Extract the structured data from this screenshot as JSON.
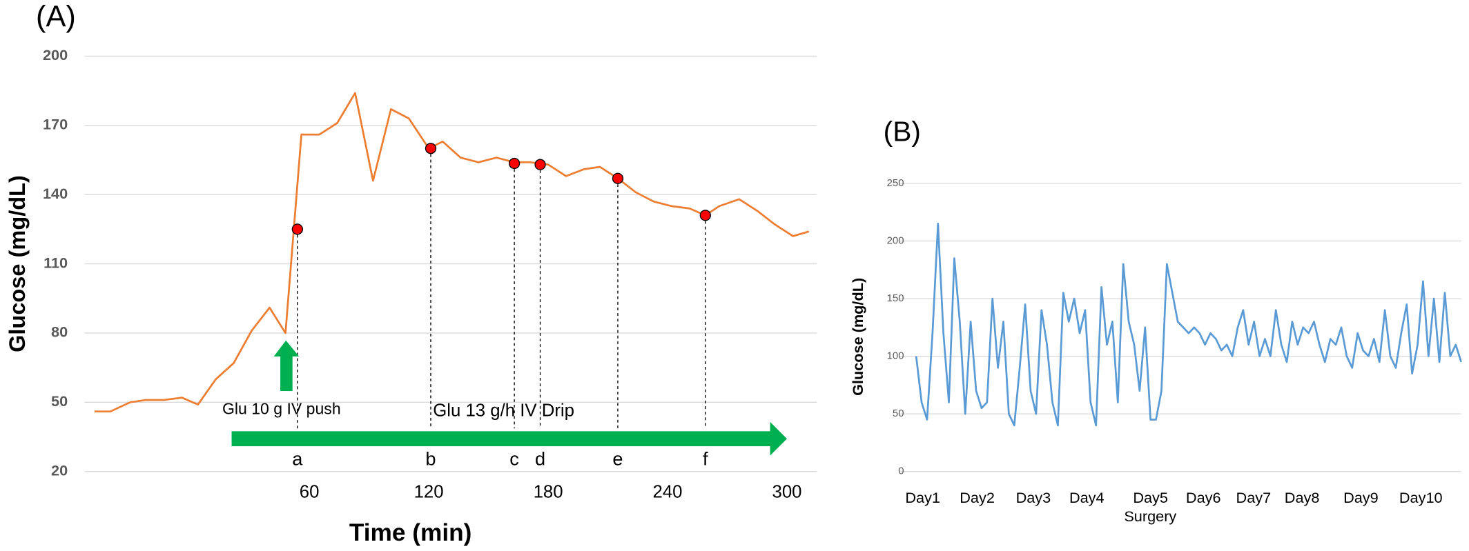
{
  "chart_data": [
    {
      "type": "line",
      "title": "(A)",
      "x_label": "Time (min)",
      "y_label": "Glucose (mg/dL)",
      "x": [
        -48,
        -40,
        -30,
        -22,
        -13,
        -4,
        4,
        13,
        22,
        31,
        40,
        48,
        56,
        65,
        74,
        83,
        92,
        101,
        110,
        120,
        127,
        136,
        145,
        154,
        163,
        171,
        180,
        189,
        198,
        206,
        215,
        224,
        233,
        242,
        251,
        259,
        266,
        276,
        285,
        294,
        303,
        311
      ],
      "series": [
        {
          "color": "#ed7d31",
          "values": [
            46,
            46,
            50,
            51,
            51,
            52,
            49,
            60,
            67,
            81,
            91,
            80,
            166,
            166,
            171,
            184,
            146,
            177,
            173,
            160,
            163,
            156,
            154,
            156,
            154,
            154,
            153,
            148,
            151,
            152,
            147,
            141,
            137,
            135,
            134,
            131,
            135,
            138,
            133,
            127,
            122,
            124
          ]
        }
      ],
      "points": {
        "color": "#ff0000",
        "labels": [
          "a",
          "b",
          "c",
          "d",
          "e",
          "f"
        ],
        "x": [
          54,
          121,
          163,
          176,
          215,
          259
        ],
        "values": [
          125,
          160,
          153.5,
          153,
          147,
          131
        ]
      },
      "annotations": [
        "Glu 10 g IV push",
        "Glu 13 g/h IV Drip"
      ],
      "xlim": [
        -50,
        315
      ],
      "xticks": [
        60,
        120,
        180,
        240,
        300
      ],
      "ylim": [
        20,
        200
      ],
      "yticks": [
        20,
        50,
        80,
        110,
        140,
        170,
        200
      ],
      "grid": true
    },
    {
      "type": "line",
      "title": "(B)",
      "y_label": "Glucose (mg/dL)",
      "x": [
        0,
        0.1,
        0.2,
        0.3,
        0.4,
        0.5,
        0.6,
        0.7,
        0.8,
        0.9,
        1,
        1.1,
        1.2,
        1.3,
        1.4,
        1.5,
        1.6,
        1.7,
        1.8,
        1.9,
        2,
        2.1,
        2.2,
        2.3,
        2.4,
        2.5,
        2.6,
        2.7,
        2.8,
        2.9,
        3,
        3.1,
        3.2,
        3.3,
        3.4,
        3.5,
        3.6,
        3.7,
        3.8,
        3.9,
        4,
        4.1,
        4.2,
        4.3,
        4.4,
        4.5,
        4.6,
        4.7,
        4.8,
        4.9,
        5,
        5.1,
        5.2,
        5.3,
        5.4,
        5.5,
        5.6,
        5.7,
        5.8,
        5.9,
        6,
        6.1,
        6.2,
        6.3,
        6.4,
        6.5,
        6.6,
        6.7,
        6.8,
        6.9,
        7,
        7.1,
        7.2,
        7.3,
        7.4,
        7.5,
        7.6,
        7.7,
        7.8,
        7.9,
        8,
        8.1,
        8.2,
        8.3,
        8.4,
        8.5,
        8.6,
        8.7,
        8.8,
        8.9,
        9,
        9.1,
        9.2,
        9.3,
        9.4,
        9.5,
        9.6,
        9.7,
        9.8,
        9.9,
        10
      ],
      "series": [
        {
          "color": "#5b9bd5",
          "values": [
            100,
            60,
            45,
            120,
            215,
            120,
            60,
            185,
            130,
            50,
            130,
            70,
            55,
            60,
            150,
            90,
            130,
            50,
            40,
            90,
            145,
            70,
            50,
            140,
            110,
            60,
            40,
            155,
            130,
            150,
            120,
            140,
            60,
            40,
            160,
            110,
            130,
            60,
            180,
            130,
            110,
            70,
            125,
            45,
            45,
            70,
            180,
            155,
            130,
            125,
            120,
            125,
            120,
            110,
            120,
            115,
            105,
            110,
            100,
            125,
            140,
            110,
            130,
            100,
            115,
            100,
            140,
            110,
            95,
            130,
            110,
            125,
            120,
            130,
            110,
            95,
            115,
            110,
            125,
            100,
            90,
            120,
            105,
            100,
            115,
            95,
            140,
            100,
            90,
            120,
            145,
            85,
            110,
            165,
            100,
            150,
            95,
            155,
            100,
            110,
            95
          ]
        }
      ],
      "annotations": [
        "Surgery"
      ],
      "xlim": [
        0,
        10
      ],
      "xticks": [
        {
          "value": 0.12,
          "label": "Day1"
        },
        {
          "value": 1.12,
          "label": "Day2"
        },
        {
          "value": 2.15,
          "label": "Day3"
        },
        {
          "value": 3.13,
          "label": "Day4"
        },
        {
          "value": 4.3,
          "label": "Day5"
        },
        {
          "value": 5.27,
          "label": "Day6"
        },
        {
          "value": 6.19,
          "label": "Day7"
        },
        {
          "value": 7.08,
          "label": "Day8"
        },
        {
          "value": 8.16,
          "label": "Day9"
        },
        {
          "value": 9.26,
          "label": "Day10"
        }
      ],
      "ylim": [
        0,
        250
      ],
      "yticks": [
        0,
        50,
        100,
        150,
        200,
        250
      ],
      "grid": true
    }
  ]
}
